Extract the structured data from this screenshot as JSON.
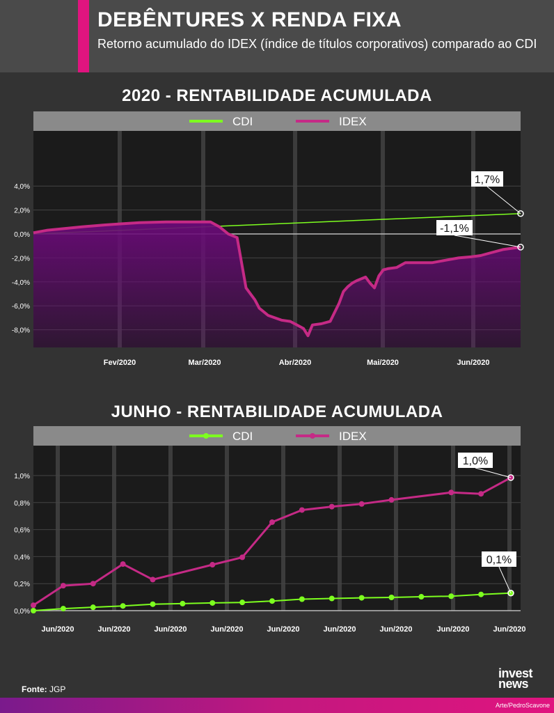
{
  "header": {
    "title": "DEBÊNTURES X RENDA FIXA",
    "subtitle": "Retorno acumulado do IDEX (índice de títulos corporativos) comparado ao CDI"
  },
  "footer": {
    "source_label": "Fonte:",
    "source_value": "JGP",
    "logo_line1": "invest",
    "logo_line2": "news",
    "credit": "Arte/PedroScavone"
  },
  "colors": {
    "cdi": "#7dff1f",
    "idex": "#c52a86",
    "accent": "#e0147f",
    "area": "#6a0a78"
  },
  "chart_data": [
    {
      "type": "line",
      "title": "2020 - RENTABILIDADE ACUMULADA",
      "x_tick_labels": [
        "Fev/2020",
        "Mar/2020",
        "Abr/2020",
        "Mai/2020",
        "Jun/2020"
      ],
      "y_tick_labels": [
        "4,0%",
        "2,0%",
        "0,0%",
        "-2,0%",
        "-4,0%",
        "-6,0%",
        "-8,0%"
      ],
      "ylim": [
        -9.5,
        8.5
      ],
      "grid": true,
      "legend": "top",
      "series": [
        {
          "name": "CDI",
          "x": [
            0.0,
            5.5
          ],
          "y": [
            0.0,
            1.7
          ],
          "end_label": "1,7%"
        },
        {
          "name": "IDEX",
          "end_label": "-1,1%",
          "x": [
            0.0,
            0.15,
            0.35,
            0.55,
            0.8,
            1.0,
            1.2,
            1.5,
            1.8,
            2.0,
            2.1,
            2.2,
            2.3,
            2.4,
            2.5,
            2.55,
            2.65,
            2.8,
            2.9,
            3.0,
            3.05,
            3.1,
            3.15,
            3.25,
            3.35,
            3.45,
            3.5,
            3.55,
            3.6,
            3.65,
            3.75,
            3.8,
            3.85,
            3.9,
            3.95,
            4.0,
            4.1,
            4.2,
            4.35,
            4.5,
            4.65,
            4.8,
            4.95,
            5.05,
            5.15,
            5.3,
            5.5
          ],
          "y": [
            0.1,
            0.3,
            0.45,
            0.6,
            0.75,
            0.85,
            0.95,
            1.0,
            1.0,
            1.0,
            0.6,
            0.0,
            -0.3,
            -4.5,
            -5.5,
            -6.2,
            -6.8,
            -7.2,
            -7.3,
            -7.7,
            -7.9,
            -8.5,
            -7.6,
            -7.5,
            -7.3,
            -5.8,
            -4.8,
            -4.4,
            -4.1,
            -3.9,
            -3.6,
            -4.1,
            -4.5,
            -3.5,
            -3.0,
            -2.9,
            -2.8,
            -2.4,
            -2.4,
            -2.4,
            -2.2,
            -2.0,
            -1.9,
            -1.8,
            -1.6,
            -1.3,
            -1.1
          ]
        }
      ]
    },
    {
      "type": "line",
      "title": "JUNHO - RENTABILIDADE ACUMULADA",
      "x_tick_labels": [
        "Jun/2020",
        "Jun/2020",
        "Jun/2020",
        "Jun/2020",
        "Jun/2020",
        "Jun/2020",
        "Jun/2020",
        "Jun/2020",
        "Jun/2020"
      ],
      "y_tick_labels": [
        "1,0%",
        "0,8%",
        "0,6%",
        "0,4%",
        "0,2%",
        "0,0%"
      ],
      "ylim": [
        0,
        1.2
      ],
      "grid": true,
      "legend": "top",
      "series": [
        {
          "name": "CDI",
          "end_label": "0,1%",
          "x": [
            0,
            1,
            2,
            3,
            4,
            5,
            6,
            7,
            8,
            9,
            10,
            11,
            12,
            13,
            14,
            15,
            16
          ],
          "y": [
            0.0,
            0.015,
            0.025,
            0.035,
            0.048,
            0.052,
            0.057,
            0.061,
            0.071,
            0.085,
            0.09,
            0.095,
            0.098,
            0.103,
            0.107,
            0.12,
            0.13
          ]
        },
        {
          "name": "IDEX",
          "end_label": "1,0%",
          "x": [
            0,
            1,
            2,
            3,
            4,
            6,
            7,
            8,
            9,
            10,
            11,
            12,
            14,
            15,
            16
          ],
          "y": [
            0.04,
            0.185,
            0.2,
            0.345,
            0.23,
            0.34,
            0.395,
            0.655,
            0.745,
            0.77,
            0.79,
            0.82,
            0.875,
            0.865,
            0.985
          ]
        }
      ]
    }
  ]
}
